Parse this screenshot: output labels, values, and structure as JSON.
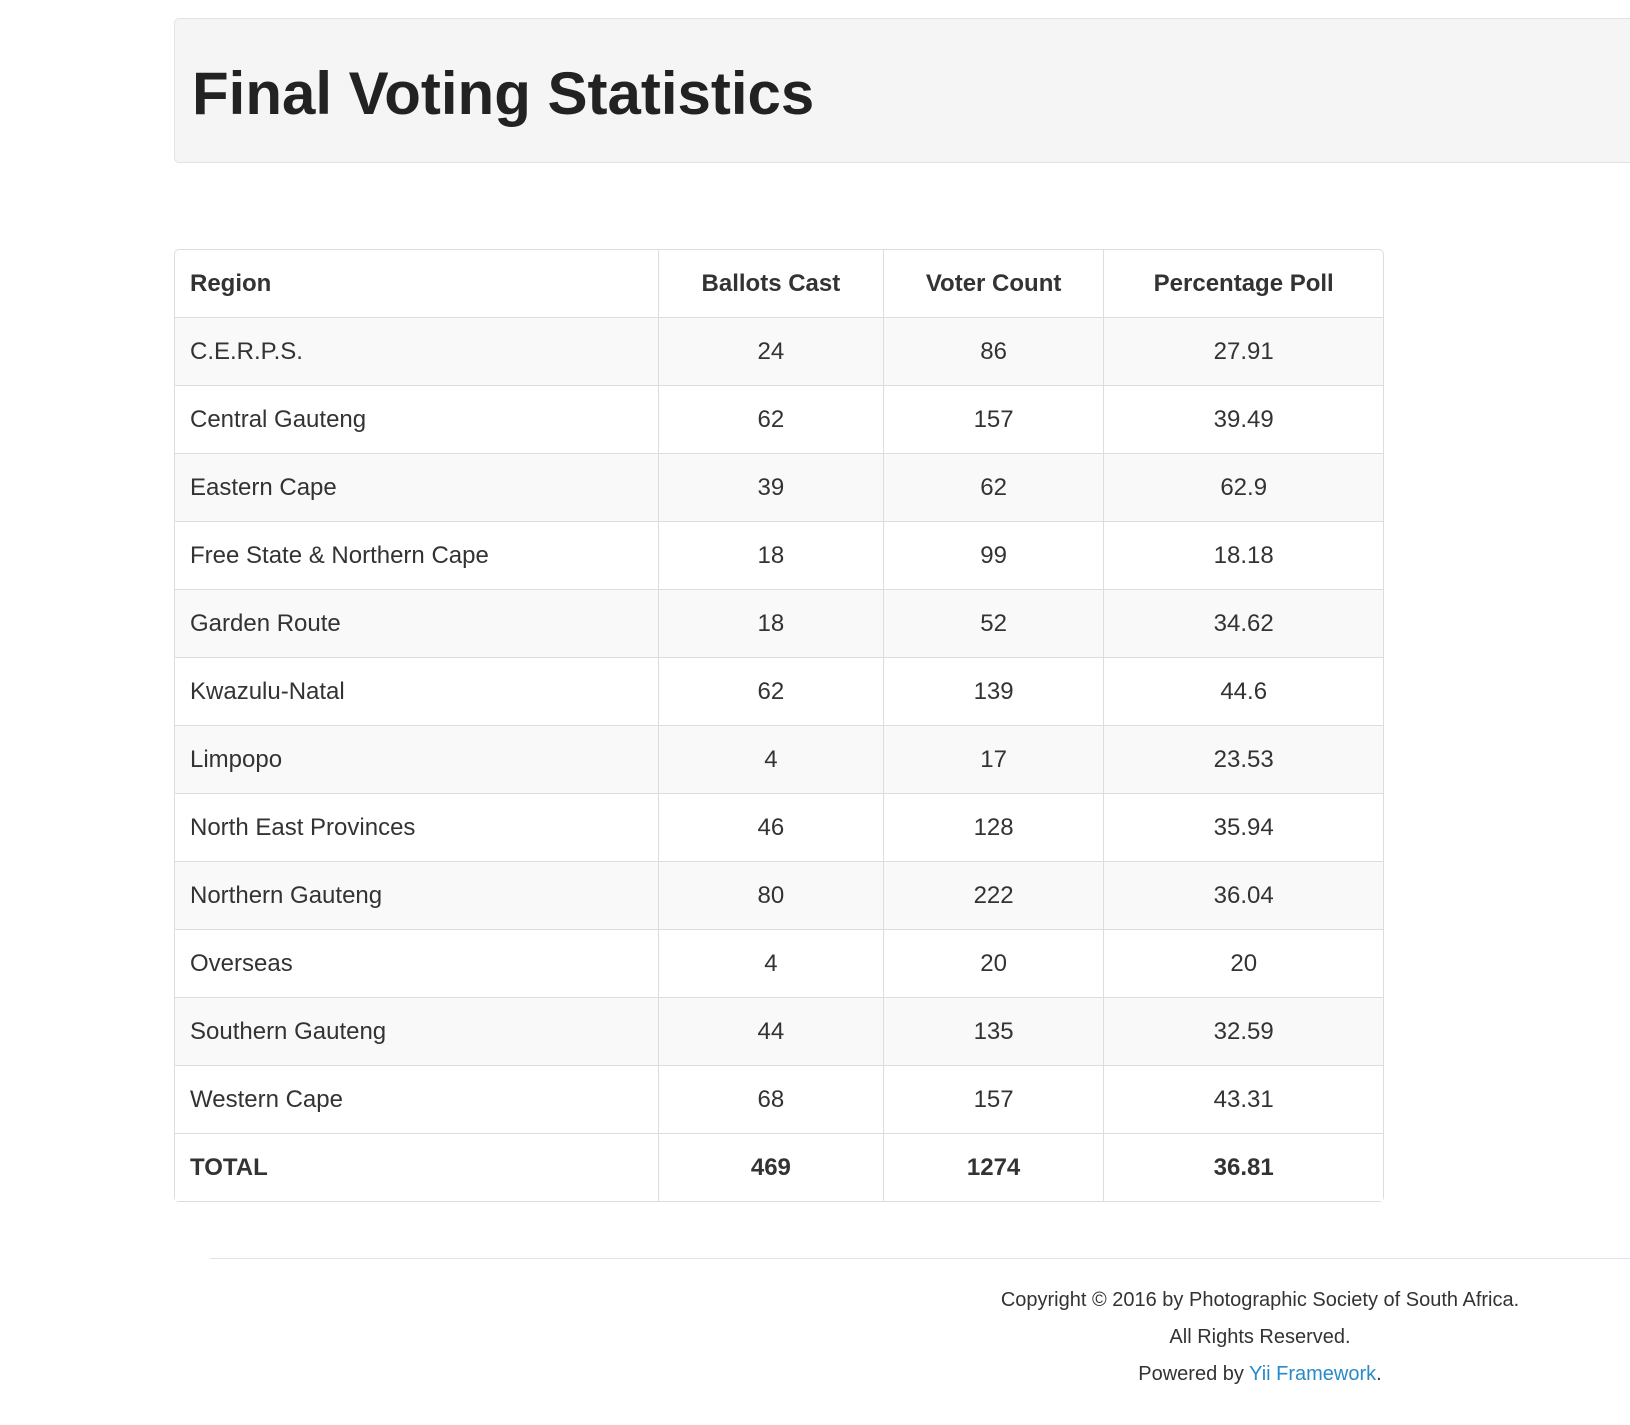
{
  "header": {
    "title": "Final Voting Statistics"
  },
  "table": {
    "headers": [
      "Region",
      "Ballots Cast",
      "Voter Count",
      "Percentage Poll"
    ],
    "rows": [
      [
        "C.E.R.P.S.",
        24,
        86,
        27.91
      ],
      [
        "Central Gauteng",
        62,
        157,
        39.49
      ],
      [
        "Eastern Cape",
        39,
        62,
        62.9
      ],
      [
        "Free State & Northern Cape",
        18,
        99,
        18.18
      ],
      [
        "Garden Route",
        18,
        52,
        34.62
      ],
      [
        "Kwazulu-Natal",
        62,
        139,
        44.6
      ],
      [
        "Limpopo",
        4,
        17,
        23.53
      ],
      [
        "North East Provinces",
        46,
        128,
        35.94
      ],
      [
        "Northern Gauteng",
        80,
        222,
        36.04
      ],
      [
        "Overseas",
        4,
        20,
        20
      ],
      [
        "Southern Gauteng",
        44,
        135,
        32.59
      ],
      [
        "Western Cape",
        68,
        157,
        43.31
      ]
    ],
    "total": [
      "TOTAL",
      469,
      1274,
      36.81
    ]
  },
  "footer": {
    "copyright": "Copyright © 2016 by Photographic Society of South Africa.",
    "rights": "All Rights Reserved.",
    "powered_prefix": "Powered by",
    "powered_link": "Yii Framework",
    "powered_suffix": "."
  }
}
